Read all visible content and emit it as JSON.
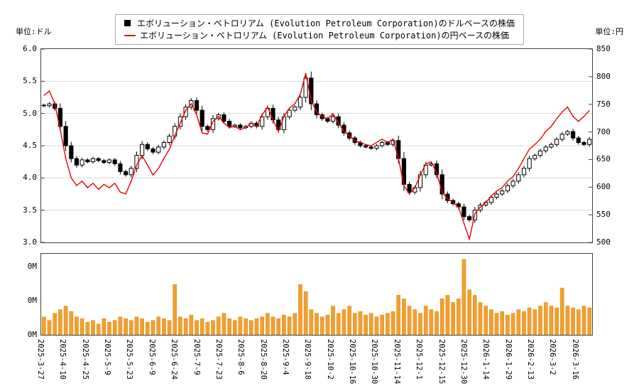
{
  "units": {
    "left": "単位:ドル",
    "right": "単位:円"
  },
  "legend": {
    "series1": {
      "marker": "■",
      "color": "#000000",
      "label": "エボリューション・ペトロリアム (Evolution Petroleum Corporation)のドルベースの株価"
    },
    "series2": {
      "marker": "—",
      "color": "#e60000",
      "label": "エボリューション・ペトロリアム (Evolution Petroleum Corporation)の円ベースの株価"
    }
  },
  "chart_data": {
    "type": "candlestick+line+volume-bar",
    "title": "",
    "left_axis": {
      "label": "単位:ドル",
      "min": 3.0,
      "max": 6.0,
      "ticks": [
        "6.0",
        "5.5",
        "5.0",
        "4.5",
        "4.0",
        "3.5",
        "3.0"
      ]
    },
    "right_axis": {
      "label": "単位:円",
      "min": 500,
      "max": 850,
      "ticks": [
        "850",
        "800",
        "750",
        "700",
        "650",
        "600",
        "550",
        "500"
      ]
    },
    "x_tick_labels": [
      "2025-3-27",
      "2025-4-10",
      "2025-4-25",
      "2025-5-9",
      "2025-5-23",
      "2025-6-9",
      "2025-6-24",
      "2025-7-9",
      "2025-7-23",
      "2025-8-6",
      "2025-8-20",
      "2025-9-4",
      "2025-9-18",
      "2025-10-2",
      "2025-10-16",
      "2025-10-30",
      "2025-11-14",
      "2025-12-1",
      "2025-12-15",
      "2025-12-30",
      "2026-1-14",
      "2026-1-29",
      "2026-2-13",
      "2026-3-2",
      "2026-3-16"
    ],
    "colors": {
      "grid": "#d9d9d9",
      "border": "#444444",
      "candle_up": "#ffffff",
      "candle_down": "#000000",
      "candle_outline": "#000000"
    },
    "series": [
      {
        "name": "エボリューション・ペトロリアム (Evolution Petroleum Corporation)のドルベースの株価",
        "type": "candlestick",
        "axis": "left",
        "color": "#000000",
        "close": [
          5.12,
          5.15,
          5.08,
          4.8,
          4.5,
          4.3,
          4.2,
          4.28,
          4.25,
          4.3,
          4.27,
          4.24,
          4.28,
          4.22,
          4.1,
          4.05,
          4.15,
          4.35,
          4.52,
          4.45,
          4.4,
          4.48,
          4.55,
          4.65,
          4.8,
          4.95,
          5.1,
          5.2,
          5.05,
          4.8,
          4.75,
          4.92,
          4.98,
          4.88,
          4.8,
          4.82,
          4.78,
          4.8,
          4.85,
          4.8,
          4.95,
          5.08,
          4.9,
          4.75,
          4.95,
          5.05,
          5.1,
          5.25,
          5.55,
          5.15,
          4.98,
          4.92,
          4.88,
          4.95,
          4.82,
          4.7,
          4.62,
          4.55,
          4.5,
          4.48,
          4.46,
          4.5,
          4.55,
          4.52,
          4.58,
          4.3,
          3.9,
          3.78,
          3.85,
          4.05,
          4.2,
          4.22,
          4.05,
          3.75,
          3.65,
          3.6,
          3.55,
          3.4,
          3.35,
          3.5,
          3.58,
          3.62,
          3.7,
          3.75,
          3.8,
          3.88,
          3.95,
          4.05,
          4.15,
          4.3,
          4.35,
          4.42,
          4.48,
          4.52,
          4.6,
          4.68,
          4.72,
          4.62,
          4.55,
          4.52,
          4.6
        ]
      },
      {
        "name": "エボリューション・ペトロリアム (Evolution Petroleum Corporation)の円ベースの株価",
        "type": "line",
        "axis": "right",
        "color": "#e60000",
        "close": [
          766,
          774,
          751,
          704,
          652,
          617,
          603,
          611,
          599,
          607,
          596,
          605,
          599,
          607,
          591,
          588,
          611,
          640,
          657,
          640,
          622,
          634,
          652,
          669,
          693,
          716,
          739,
          751,
          731,
          698,
          696,
          719,
          728,
          716,
          708,
          710,
          704,
          708,
          716,
          710,
          731,
          745,
          722,
          701,
          728,
          743,
          751,
          768,
          806,
          757,
          736,
          728,
          724,
          733,
          716,
          701,
          693,
          684,
          681,
          677,
          675,
          681,
          687,
          681,
          687,
          652,
          603,
          588,
          599,
          622,
          642,
          646,
          626,
          591,
          579,
          572,
          564,
          535,
          506,
          552,
          564,
          572,
          584,
          593,
          599,
          611,
          619,
          634,
          652,
          669,
          677,
          687,
          701,
          710,
          724,
          736,
          745,
          728,
          719,
          728,
          739
        ]
      }
    ],
    "volume": {
      "ticks": [
        "0M",
        "0M",
        "0M"
      ],
      "color": "#f0a030",
      "bar_edge": "#d88d15",
      "max_millions": 0.45,
      "values_millions": [
        0.1,
        0.08,
        0.12,
        0.14,
        0.16,
        0.13,
        0.1,
        0.09,
        0.07,
        0.08,
        0.06,
        0.09,
        0.07,
        0.08,
        0.1,
        0.09,
        0.08,
        0.1,
        0.09,
        0.07,
        0.08,
        0.1,
        0.09,
        0.08,
        0.28,
        0.1,
        0.09,
        0.11,
        0.08,
        0.09,
        0.07,
        0.08,
        0.1,
        0.12,
        0.09,
        0.08,
        0.1,
        0.09,
        0.08,
        0.09,
        0.1,
        0.12,
        0.1,
        0.09,
        0.11,
        0.1,
        0.12,
        0.28,
        0.24,
        0.14,
        0.12,
        0.1,
        0.11,
        0.16,
        0.12,
        0.14,
        0.16,
        0.12,
        0.13,
        0.11,
        0.12,
        0.1,
        0.11,
        0.12,
        0.13,
        0.22,
        0.2,
        0.16,
        0.14,
        0.12,
        0.16,
        0.14,
        0.13,
        0.2,
        0.22,
        0.18,
        0.2,
        0.42,
        0.25,
        0.22,
        0.18,
        0.16,
        0.14,
        0.12,
        0.13,
        0.11,
        0.12,
        0.14,
        0.13,
        0.15,
        0.14,
        0.16,
        0.18,
        0.16,
        0.15,
        0.26,
        0.16,
        0.15,
        0.14,
        0.16,
        0.15
      ]
    }
  }
}
